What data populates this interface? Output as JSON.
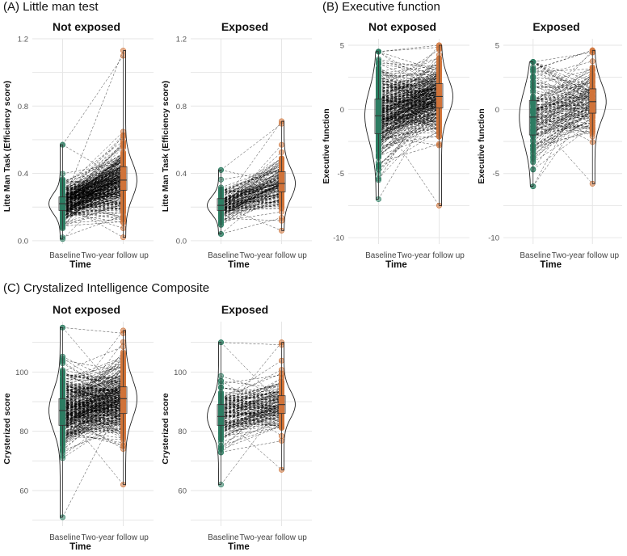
{
  "sections": {
    "a": "(A) Little man test",
    "b": "(B) Executive function",
    "c": "(C) Crystalized Intelligence Composite"
  },
  "colors": {
    "baseline": "#2e7d63",
    "followup": "#d0743a",
    "line": "#000000",
    "grid": "#e6e6e6"
  },
  "chart_data": [
    {
      "id": "lmt-not-exposed",
      "type": "raincloud-paired",
      "title": "Not exposed",
      "xlabel": "Time",
      "ylabel": "Litte Man Task (Efficiency score)",
      "categories": [
        "Baseline",
        "Two-year follow up"
      ],
      "ylim": [
        -0.02,
        1.2
      ],
      "yticks": [
        "0.0",
        "0.4",
        "0.8",
        "1.2"
      ],
      "ytick_values": [
        0,
        0.4,
        0.8,
        1.2
      ],
      "series": [
        {
          "name": "Baseline",
          "range": [
            0.01,
            0.57
          ],
          "median": 0.22,
          "q1": 0.18,
          "q3": 0.26
        },
        {
          "name": "Two-year follow up",
          "range": [
            0.02,
            1.13
          ],
          "median": 0.36,
          "q1": 0.3,
          "q3": 0.44
        }
      ]
    },
    {
      "id": "lmt-exposed",
      "type": "raincloud-paired",
      "title": "Exposed",
      "xlabel": "Time",
      "ylabel": "Litte Man Task (Efficiency score)",
      "categories": [
        "Baseline",
        "Two-year follow up"
      ],
      "ylim": [
        -0.02,
        1.2
      ],
      "yticks": [
        "0.0",
        "0.4",
        "0.8",
        "1.2"
      ],
      "ytick_values": [
        0,
        0.4,
        0.8,
        1.2
      ],
      "series": [
        {
          "name": "Baseline",
          "range": [
            0.04,
            0.42
          ],
          "median": 0.21,
          "q1": 0.18,
          "q3": 0.25
        },
        {
          "name": "Two-year follow up",
          "range": [
            0.06,
            0.71
          ],
          "median": 0.34,
          "q1": 0.29,
          "q3": 0.41
        }
      ]
    },
    {
      "id": "ef-not-exposed",
      "type": "raincloud-paired",
      "title": "Not exposed",
      "xlabel": "Time",
      "ylabel": "Executive function",
      "categories": [
        "Baseline",
        "Two-year follow up"
      ],
      "ylim": [
        -10.5,
        5.5
      ],
      "yticks": [
        "-10",
        "-5",
        "0",
        "5"
      ],
      "ytick_values": [
        -10,
        -5,
        0,
        5
      ],
      "series": [
        {
          "name": "Baseline",
          "range": [
            -7.0,
            4.5
          ],
          "median": -0.5,
          "q1": -1.9,
          "q3": 0.8
        },
        {
          "name": "Two-year follow up",
          "range": [
            -7.5,
            5.0
          ],
          "median": 1.0,
          "q1": 0.1,
          "q3": 2.0
        }
      ]
    },
    {
      "id": "ef-exposed",
      "type": "raincloud-paired",
      "title": "Exposed",
      "xlabel": "Time",
      "ylabel": "Executive function",
      "categories": [
        "Baseline",
        "Two-year follow up"
      ],
      "ylim": [
        -10.5,
        5.5
      ],
      "yticks": [
        "-10",
        "-5",
        "0",
        "5"
      ],
      "ytick_values": [
        -10,
        -5,
        0,
        5
      ],
      "series": [
        {
          "name": "Baseline",
          "range": [
            -6.0,
            3.7
          ],
          "median": -0.6,
          "q1": -2.0,
          "q3": 0.7
        },
        {
          "name": "Two-year follow up",
          "range": [
            -5.8,
            4.6
          ],
          "median": 0.6,
          "q1": -0.3,
          "q3": 1.6
        }
      ]
    },
    {
      "id": "cic-not-exposed",
      "type": "raincloud-paired",
      "title": "Not exposed",
      "xlabel": "Time",
      "ylabel": "Crysterized score",
      "categories": [
        "Baseline",
        "Two-year follow up"
      ],
      "ylim": [
        48,
        117
      ],
      "yticks": [
        "60",
        "80",
        "100"
      ],
      "ytick_values": [
        60,
        80,
        100
      ],
      "series": [
        {
          "name": "Baseline",
          "range": [
            51,
            115
          ],
          "median": 87,
          "q1": 82,
          "q3": 91
        },
        {
          "name": "Two-year follow up",
          "range": [
            62,
            114
          ],
          "median": 91,
          "q1": 86,
          "q3": 95
        }
      ]
    },
    {
      "id": "cic-exposed",
      "type": "raincloud-paired",
      "title": "Exposed",
      "xlabel": "Time",
      "ylabel": "Crysterized score",
      "categories": [
        "Baseline",
        "Two-year follow up"
      ],
      "ylim": [
        48,
        117
      ],
      "yticks": [
        "60",
        "80",
        "100"
      ],
      "ytick_values": [
        60,
        80,
        100
      ],
      "series": [
        {
          "name": "Baseline",
          "range": [
            62,
            110
          ],
          "median": 85,
          "q1": 82,
          "q3": 89
        },
        {
          "name": "Two-year follow up",
          "range": [
            67,
            110
          ],
          "median": 89,
          "q1": 86,
          "q3": 92
        }
      ]
    }
  ]
}
